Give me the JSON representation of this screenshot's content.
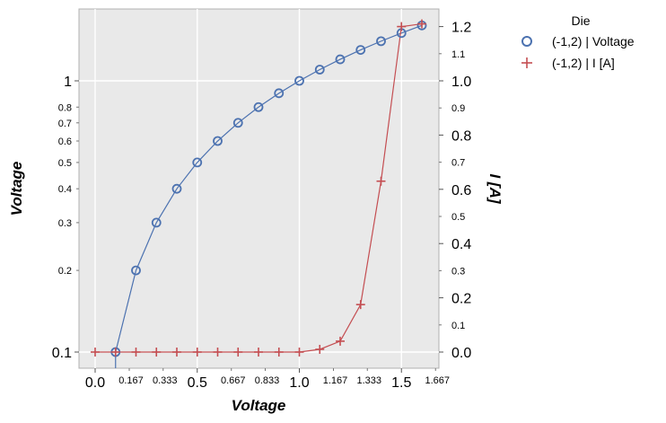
{
  "chart_data": {
    "type": "line",
    "title": "",
    "xlabel": "Voltage",
    "ylabel_left": "Voltage",
    "ylabel_right": "I [A]",
    "x_scale": "linear",
    "x_ticks_major": [
      "0.0",
      "0.5",
      "1.0",
      "1.5"
    ],
    "x_ticks_minor": [
      "0.167",
      "0.333",
      "0.667",
      "0.833",
      "1.167",
      "1.333",
      "1.667"
    ],
    "y_left_scale": "log",
    "y_left_ticks_major": [
      "0.1",
      "1"
    ],
    "y_left_ticks_minor": [
      "0.2",
      "0.3",
      "0.4",
      "0.5",
      "0.6",
      "0.7",
      "0.8"
    ],
    "y_right_scale": "linear",
    "y_right_ticks_major": [
      "0.0",
      "0.2",
      "0.4",
      "0.6",
      "0.8",
      "1.0",
      "1.2"
    ],
    "y_right_ticks_minor": [
      "0.1",
      "0.3",
      "0.5",
      "0.7",
      "0.9",
      "1.1"
    ],
    "legend": {
      "title": "Die",
      "placement": "outside-top-right",
      "entries": [
        "(-1,2) | Voltage",
        "(-1,2) | I [A]"
      ]
    },
    "series": [
      {
        "name": "(-1,2) | Voltage",
        "axis": "left",
        "marker": "circle",
        "color": "#4c72b0",
        "x": [
          0.1,
          0.2,
          0.3,
          0.4,
          0.5,
          0.6,
          0.7,
          0.8,
          0.9,
          1.0,
          1.1,
          1.2,
          1.3,
          1.4,
          1.5,
          1.6
        ],
        "y": [
          0.1,
          0.2,
          0.3,
          0.4,
          0.5,
          0.6,
          0.7,
          0.8,
          0.9,
          1.0,
          1.1,
          1.2,
          1.3,
          1.4,
          1.5,
          1.6
        ]
      },
      {
        "name": "(-1,2) | I [A]",
        "axis": "right",
        "marker": "plus",
        "color": "#c44e52",
        "x": [
          0.0,
          0.1,
          0.2,
          0.3,
          0.4,
          0.5,
          0.6,
          0.7,
          0.8,
          0.9,
          1.0,
          1.1,
          1.2,
          1.3,
          1.4,
          1.5,
          1.6
        ],
        "y": [
          0.0,
          0.0,
          0.0,
          0.0,
          0.0,
          0.0,
          0.0,
          0.0,
          0.0,
          0.0,
          0.0,
          0.01,
          0.04,
          0.175,
          0.63,
          1.2,
          1.21
        ]
      }
    ],
    "grid": true
  }
}
